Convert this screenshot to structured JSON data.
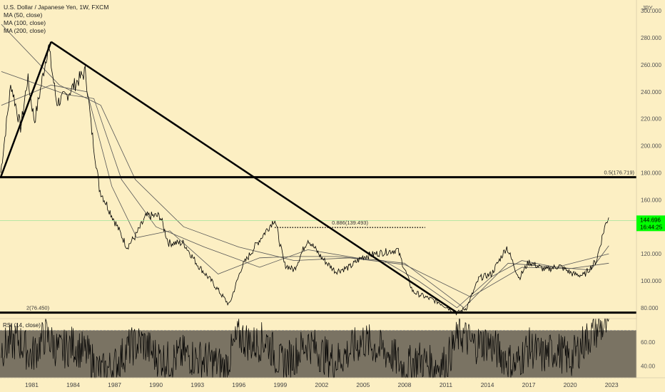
{
  "legend": {
    "symbol": "U.S. Dollar / Japanese Yen, 1W, FXCM",
    "ma50": "MA (50, close)",
    "ma100": "MA (100, close)",
    "ma200": "MA (200, close)"
  },
  "currency_label": "JPY",
  "rsi_label": "RSI (14, close)",
  "price_tag": {
    "value": "144.696",
    "countdown": "16:44:25"
  },
  "chart_data": [
    {
      "type": "line",
      "title": "U.S. Dollar / Japanese Yen, 1W, FXCM",
      "ylabel": "JPY",
      "ylim": [
        72,
        308
      ],
      "y_ticks": [
        "80.000",
        "100.000",
        "120.000",
        "140.000",
        "160.000",
        "180.000",
        "200.000",
        "220.000",
        "240.000",
        "260.000",
        "280.000",
        "300.000"
      ],
      "x_ticks": [
        "1981",
        "1984",
        "1987",
        "1990",
        "1993",
        "1996",
        "1999",
        "2002",
        "2005",
        "2008",
        "2011",
        "2014",
        "2017",
        "2020",
        "2023"
      ],
      "xlim": [
        1978.7,
        2024.8
      ],
      "series": [
        {
          "name": "USDJPY",
          "x": [
            1978.75,
            1979.5,
            1980.2,
            1980.7,
            1981.2,
            1981.6,
            1982.2,
            1982.8,
            1983.5,
            1984.3,
            1984.9,
            1985.3,
            1985.9,
            1986.5,
            1987.2,
            1987.9,
            1988.5,
            1989.3,
            1990.3,
            1990.9,
            1992.0,
            1993.0,
            1994.0,
            1995.3,
            1996.2,
            1997.2,
            1998.6,
            1999.3,
            2000.0,
            2001.0,
            2002.0,
            2003.0,
            2004.0,
            2005.0,
            2005.9,
            2007.5,
            2008.6,
            2009.5,
            2010.5,
            2011.8,
            2012.5,
            2013.4,
            2014.3,
            2015.4,
            2016.3,
            2017.0,
            2018.2,
            2019.2,
            2020.2,
            2021.0,
            2021.9,
            2022.5,
            2022.8
          ],
          "values": [
            180,
            246,
            213,
            250,
            218,
            240,
            275,
            232,
            237,
            248,
            255,
            215,
            168,
            155,
            140,
            125,
            133,
            148,
            148,
            128,
            128,
            112,
            100,
            82,
            110,
            126,
            146,
            112,
            108,
            131,
            117,
            107,
            110,
            118,
            120,
            123,
            92,
            88,
            84,
            76,
            80,
            102,
            105,
            125,
            102,
            114,
            108,
            111,
            105,
            104,
            115,
            140,
            148
          ]
        },
        {
          "name": "MA (50, close)",
          "x": [
            1978.8,
            1982.4,
            1985.0,
            1986.8,
            1988.6,
            1991.0,
            1994.5,
            1997.5,
            2000.0,
            2003.0,
            2006.5,
            2009.0,
            2011.8,
            2014.3,
            2016.5,
            2019.0,
            2021.5,
            2022.8
          ],
          "values": [
            230,
            245,
            240,
            170,
            132,
            137,
            105,
            117,
            118,
            118,
            115,
            100,
            80,
            103,
            115,
            110,
            108,
            126
          ]
        },
        {
          "name": "MA (100, close)",
          "x": [
            1978.8,
            1983.5,
            1985.5,
            1987.5,
            1990.0,
            1993.5,
            1997.5,
            2001.0,
            2004.5,
            2008.0,
            2012.3,
            2015.5,
            2019.0,
            2022.8
          ],
          "values": [
            255,
            238,
            235,
            175,
            140,
            125,
            110,
            123,
            117,
            113,
            80,
            113,
            110,
            120
          ]
        },
        {
          "name": "MA (200, close)",
          "x": [
            1978.8,
            1983.0,
            1986.0,
            1988.5,
            1992.0,
            1996.0,
            2000.0,
            2004.0,
            2008.0,
            2012.8,
            2016.5,
            2020.0,
            2022.8
          ],
          "values": [
            290,
            245,
            230,
            175,
            140,
            125,
            115,
            117,
            112,
            88,
            110,
            109,
            113
          ]
        }
      ],
      "annotations": [
        {
          "text": "0.5(176.719)",
          "kind": "horizontal",
          "y": 176.719
        },
        {
          "text": "0.886(139.493)",
          "kind": "horizontal-dotted",
          "y": 139.493,
          "x": [
            1998.6,
            2009.5
          ]
        },
        {
          "text": "2(76.450)",
          "kind": "horizontal",
          "y": 76.45
        },
        {
          "text": "",
          "kind": "trendline",
          "x": [
            1978.75,
            1982.4
          ],
          "y": [
            176.7,
            277
          ]
        },
        {
          "text": "",
          "kind": "trendline",
          "x": [
            1982.4,
            2011.8
          ],
          "y": [
            277,
            76.45
          ]
        }
      ],
      "grid": false,
      "colors": {
        "price": "#000000",
        "ma": "#555555",
        "level": "#000000",
        "last_price": "#00ff00",
        "current_line": "#90e090"
      }
    },
    {
      "type": "line",
      "title": "RSI (14, close)",
      "ylim": [
        30,
        80
      ],
      "y_ticks": [
        "40.00",
        "60.00"
      ],
      "band": [
        30,
        70
      ],
      "series": [
        {
          "name": "RSI (14, close)",
          "x": [
            1978.8,
            1980.0,
            1981.0,
            1982.0,
            1983.0,
            1984.0,
            1985.0,
            1986.0,
            1987.0,
            1988.0,
            1989.0,
            1990.0,
            1991.0,
            1992.0,
            1993.0,
            1994.0,
            1995.0,
            1996.0,
            1997.0,
            1998.0,
            1999.0,
            2000.0,
            2001.0,
            2002.0,
            2003.0,
            2004.0,
            2005.0,
            2006.0,
            2007.0,
            2008.0,
            2009.0,
            2010.0,
            2011.0,
            2012.0,
            2013.0,
            2014.0,
            2015.0,
            2016.0,
            2017.0,
            2018.0,
            2019.0,
            2020.0,
            2021.0,
            2022.0,
            2022.8
          ],
          "values": [
            55,
            62,
            48,
            66,
            52,
            58,
            50,
            34,
            40,
            55,
            60,
            48,
            44,
            50,
            46,
            44,
            38,
            66,
            58,
            62,
            42,
            48,
            60,
            50,
            44,
            52,
            62,
            55,
            50,
            38,
            46,
            40,
            42,
            68,
            58,
            60,
            50,
            40,
            56,
            48,
            54,
            45,
            60,
            72,
            74
          ]
        }
      ],
      "colors": {
        "band": "#7a7363"
      }
    }
  ]
}
